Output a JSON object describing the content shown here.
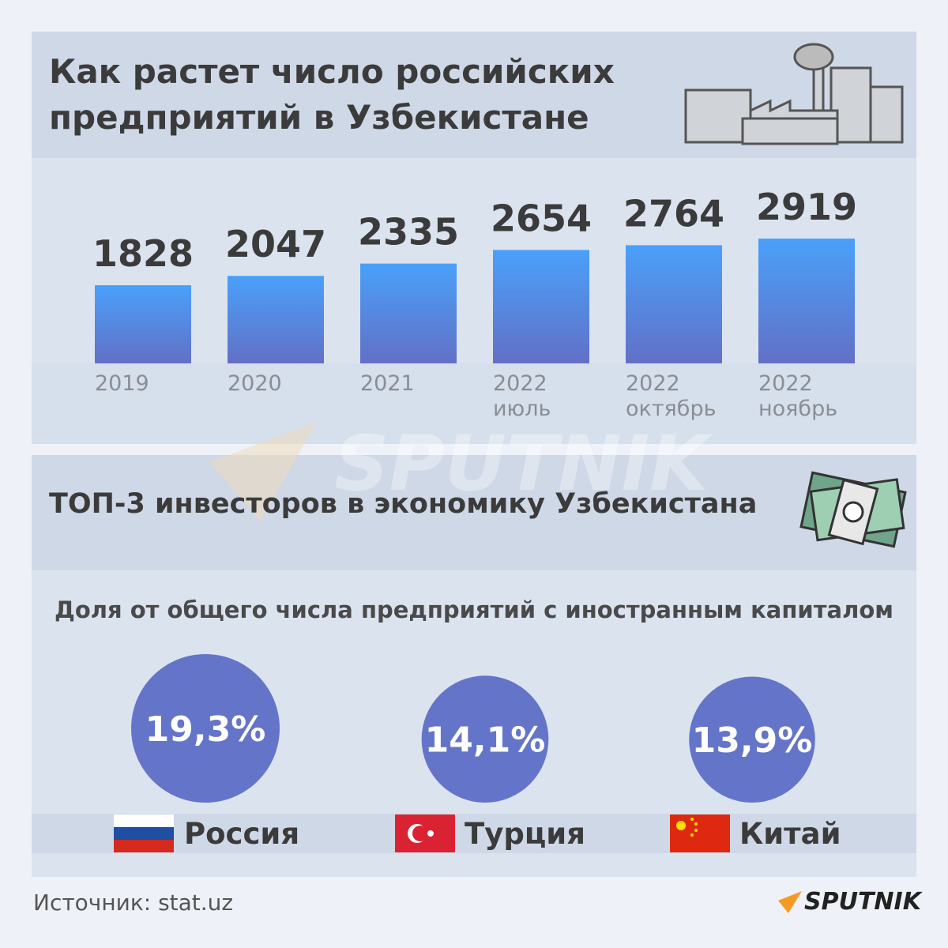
{
  "chart_data": [
    {
      "type": "bar",
      "title": "Как растет число российских предприятий в Узбекистане",
      "categories": [
        "2019",
        "2020",
        "2021",
        "2022 июль",
        "2022 октябрь",
        "2022 ноябрь"
      ],
      "values": [
        1828,
        2047,
        2335,
        2654,
        2764,
        2919
      ]
    },
    {
      "type": "bubble",
      "title": "ТОП-3 инвесторов в экономику Узбекистана",
      "subtitle": "Доля от общего числа предприятий с иностранным капиталом",
      "categories": [
        "Россия",
        "Турция",
        "Китай"
      ],
      "values": [
        19.3,
        14.1,
        13.9
      ],
      "value_labels": [
        "19,3%",
        "14,1%",
        "13,9%"
      ],
      "color": "#6475c9"
    }
  ],
  "source": "Источник: stat.uz",
  "logo": "SPUTNIK"
}
